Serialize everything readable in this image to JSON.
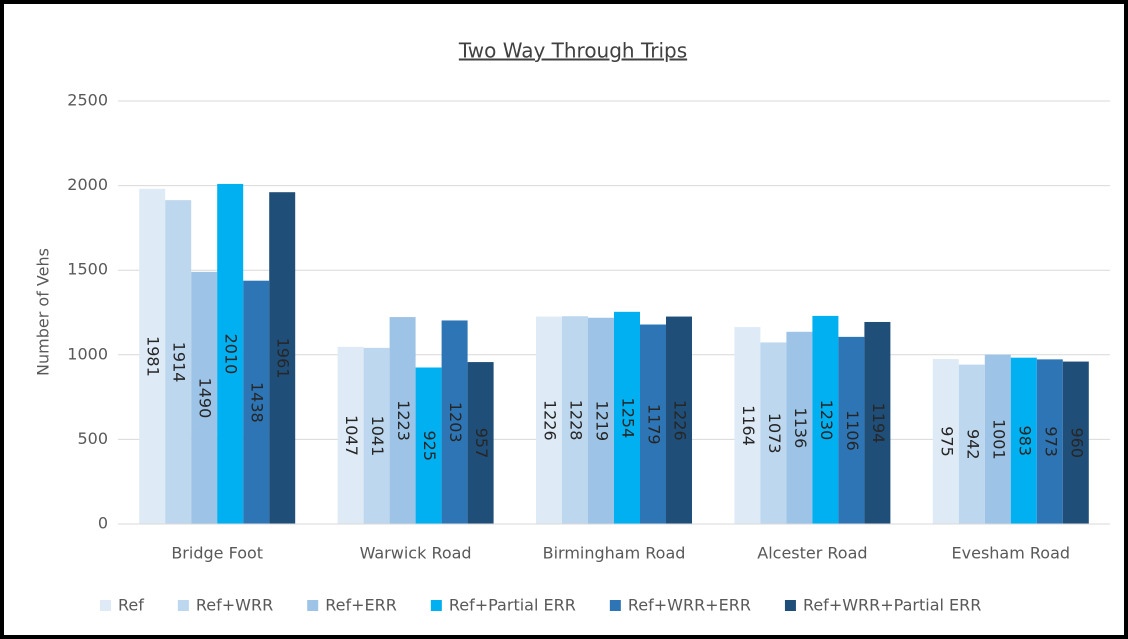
{
  "chart_data": {
    "type": "bar",
    "title": "Two Way Through Trips",
    "y_label": "Number of Vehs",
    "categories": [
      "Bridge Foot",
      "Warwick Road",
      "Birmingham Road",
      "Alcester Road",
      "Evesham Road"
    ],
    "series": [
      {
        "name": "Ref",
        "color": "#deebf7",
        "values": [
          1981,
          1047,
          1226,
          1164,
          975
        ]
      },
      {
        "name": "Ref+WRR",
        "color": "#bdd7ee",
        "values": [
          1914,
          1041,
          1228,
          1073,
          942
        ]
      },
      {
        "name": "Ref+ERR",
        "color": "#9dc3e6",
        "values": [
          1490,
          1223,
          1219,
          1136,
          1001
        ]
      },
      {
        "name": "Ref+Partial ERR",
        "color": "#00b0f0",
        "values": [
          2010,
          925,
          1254,
          1230,
          983
        ]
      },
      {
        "name": "Ref+WRR+ERR",
        "color": "#2e75b6",
        "values": [
          1438,
          1203,
          1179,
          1106,
          973
        ]
      },
      {
        "name": "Ref+WRR+Partial ERR",
        "color": "#1f4e79",
        "values": [
          1961,
          957,
          1226,
          1194,
          960
        ]
      }
    ],
    "ylim": [
      0,
      2500
    ],
    "yticks": [
      0,
      500,
      1000,
      1500,
      2000,
      2500
    ],
    "grid": true,
    "legend": "bottom"
  }
}
